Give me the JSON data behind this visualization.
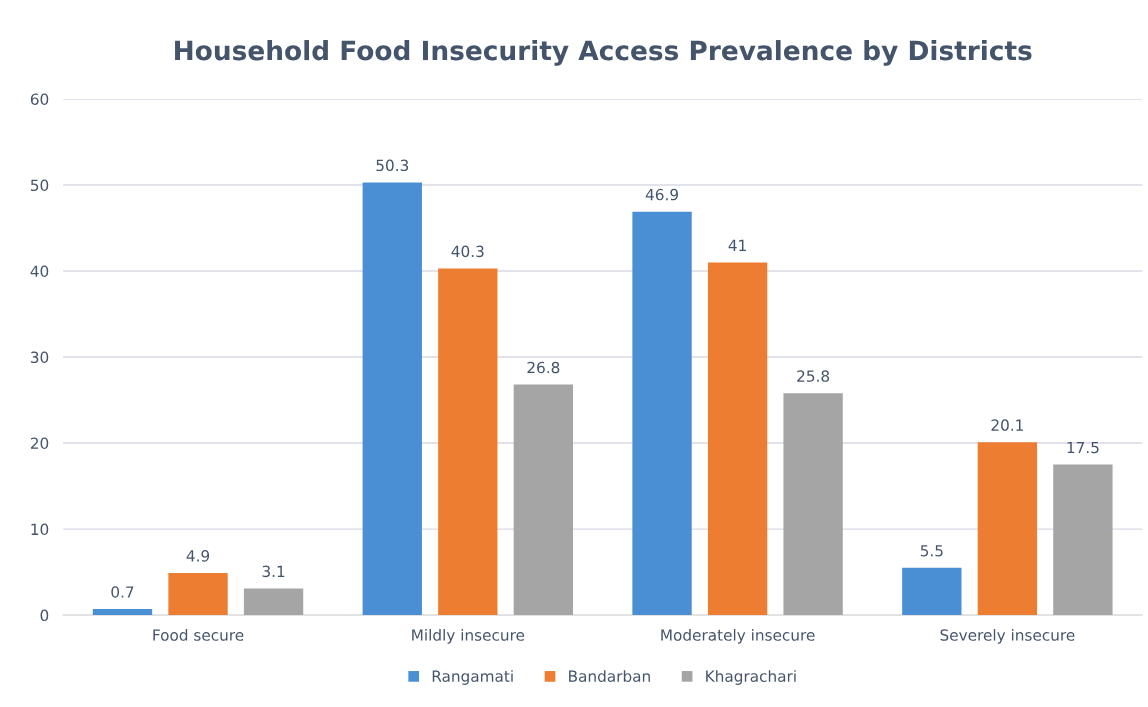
{
  "chart_data": {
    "type": "bar",
    "title": "Household Food Insecurity Access Prevalence by Districts",
    "categories": [
      "Food secure",
      "Mildly insecure",
      "Moderately insecure",
      "Severely insecure"
    ],
    "series": [
      {
        "name": "Rangamati",
        "color": "#4a8fd4",
        "values": [
          0.7,
          50.3,
          46.9,
          5.5
        ]
      },
      {
        "name": "Bandarban",
        "color": "#ed7d31",
        "values": [
          4.9,
          40.3,
          41,
          20.1
        ]
      },
      {
        "name": "Khagrachari",
        "color": "#a5a5a5",
        "values": [
          3.1,
          26.8,
          25.8,
          17.5
        ]
      }
    ],
    "ylim": [
      0,
      60
    ],
    "yticks": [
      0,
      10,
      20,
      30,
      40,
      50,
      60
    ],
    "grid": "y",
    "legend": "bottom",
    "data_labels": true
  }
}
